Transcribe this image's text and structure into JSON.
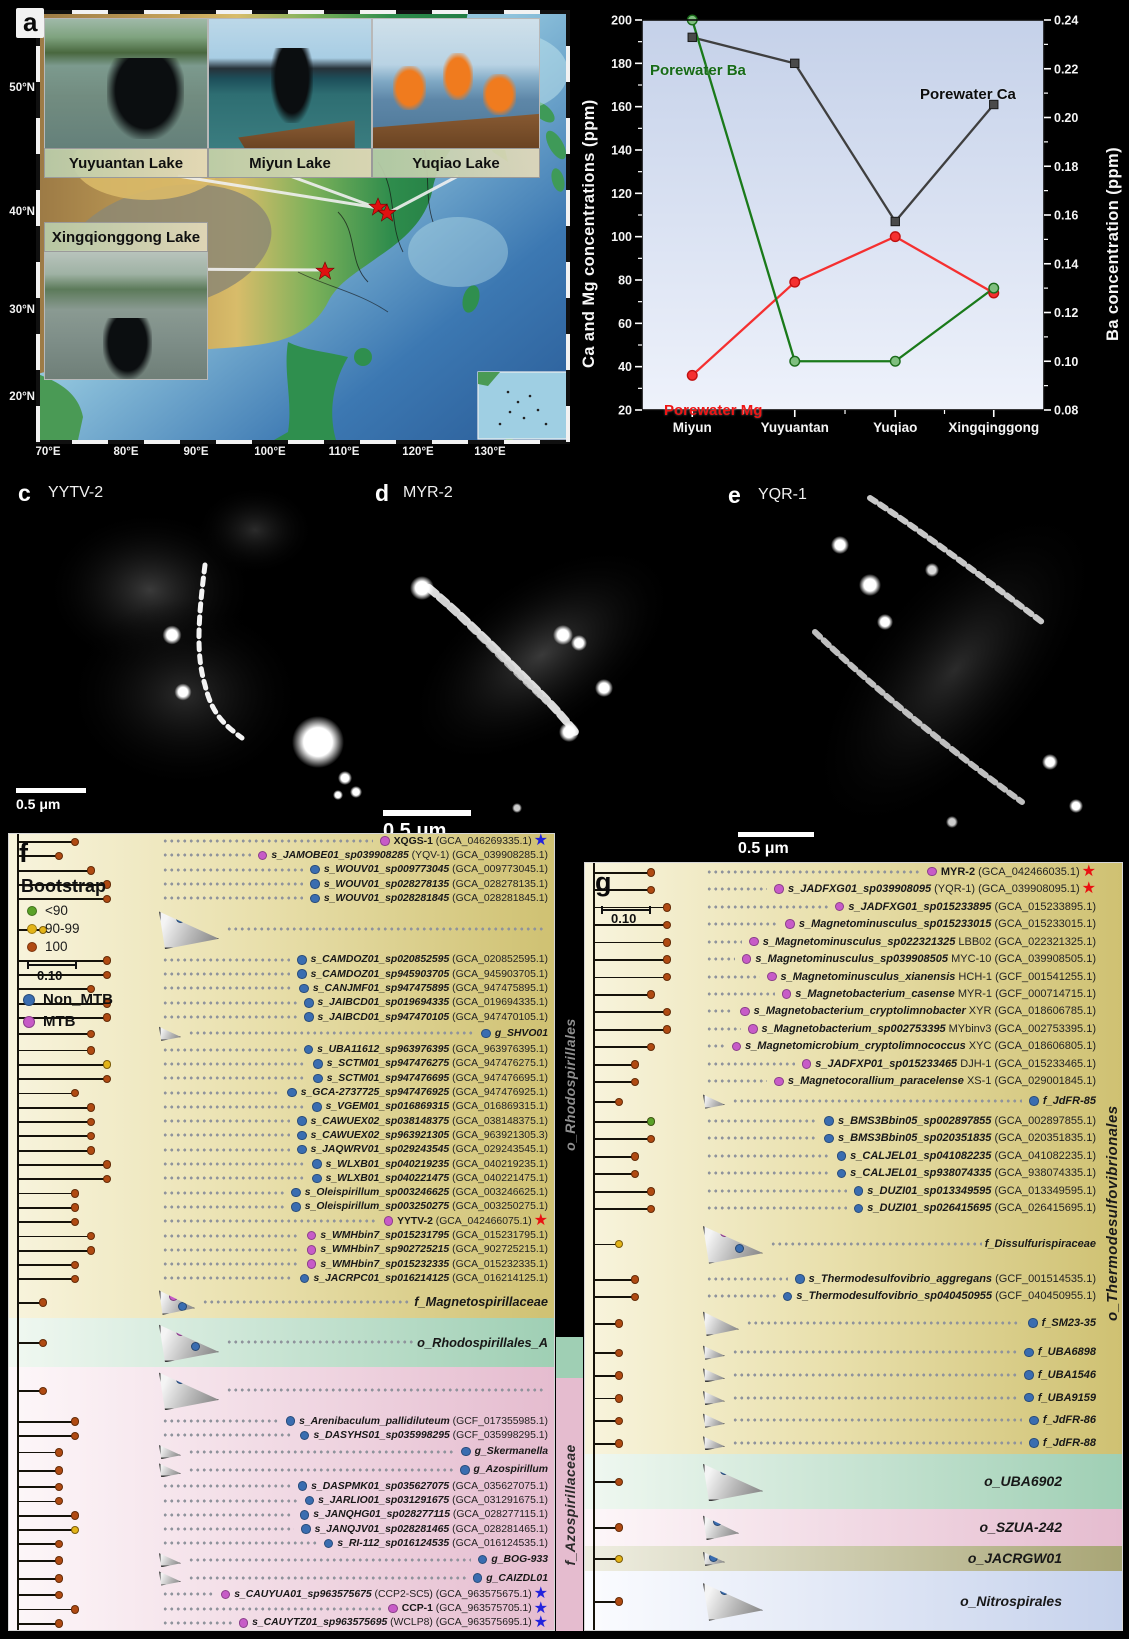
{
  "panel_a": {
    "label": "a",
    "lat_labels": [
      "50°N",
      "40°N",
      "30°N",
      "20°N"
    ],
    "lon_labels": [
      "70°E",
      "80°E",
      "90°E",
      "100°E",
      "110°E",
      "120°E",
      "130°E"
    ],
    "insets": [
      {
        "caption": "Yuyuantan Lake"
      },
      {
        "caption": "Miyun Lake"
      },
      {
        "caption": "Yuqiao Lake"
      },
      {
        "caption": "Xingqionggong Lake"
      }
    ],
    "site_marker_color": "#e01010"
  },
  "chart_data": {
    "type": "line",
    "categories": [
      "Miyun",
      "Yuyuantan",
      "Yuqiao",
      "Xingqinggong"
    ],
    "series": [
      {
        "name": "Porewater Ca",
        "axis": "left",
        "color": "#3f3f3f",
        "marker": "square",
        "marker_fill": "#4a4a4a",
        "marker_stroke": "#1a1a1a",
        "legend_color": "#0d0d0d",
        "values": [
          192,
          180,
          107,
          161
        ]
      },
      {
        "name": "Porewater Mg",
        "axis": "left",
        "color": "#f53030",
        "marker": "circle",
        "marker_fill": "#f53030",
        "marker_stroke": "#c01010",
        "legend_color": "#ee1515",
        "values": [
          36,
          79,
          100,
          74
        ]
      },
      {
        "name": "Porewater Ba",
        "axis": "right",
        "color": "#1a7a1a",
        "marker": "circle",
        "marker_fill": "#7fbf7f",
        "marker_stroke": "#1a6b1a",
        "legend_color": "#176b17",
        "values": [
          0.24,
          0.1,
          0.1,
          0.13
        ]
      }
    ],
    "ylabel_left": "Ca and Mg concentrations (ppm)",
    "ylabel_right": "Ba concentration (ppm)",
    "ylim_left": [
      20,
      200
    ],
    "ytick_step_left": 20,
    "ylim_right": [
      0.08,
      0.24
    ],
    "ytick_step_right": 0.02,
    "grid": false,
    "plot_bg_top": "#c5d1e9",
    "plot_bg_bottom": "#eef2fb",
    "legend_labels": {
      "ba": "Porewater Ba",
      "ca": "Porewater Ca",
      "mg": "Porewater Mg"
    }
  },
  "micrographs": [
    {
      "label": "c",
      "name": "YYTV-2",
      "scalebar": "0.5 μm"
    },
    {
      "label": "d",
      "name": "MYR-2",
      "scalebar": "0.5 μm"
    },
    {
      "label": "e",
      "name": "YQR-1",
      "scalebar": "0.5 μm"
    }
  ],
  "colors": {
    "mtb": "#c75bc7",
    "non_mtb": "#3a6db0",
    "boot": {
      "r": "#b04a12",
      "y": "#e3b418",
      "g": "#5aa228"
    },
    "star_blue": "#2222dd",
    "star_red": "#ea1111"
  },
  "tree_f": {
    "label": "f",
    "legend": {
      "title": "Bootstrap",
      "items": [
        {
          "label": "<90",
          "color": "#5aa228"
        },
        {
          "label": "90-99",
          "color": "#e3b418"
        },
        {
          "label": "100",
          "color": "#b04a12"
        }
      ],
      "scale": "0.10",
      "types": [
        {
          "label": "Non_MTB",
          "color": "#3a6db0"
        },
        {
          "label": "MTB",
          "color": "#c75bc7"
        }
      ]
    },
    "side_labels": {
      "order": "o_Rhodospirillales",
      "family_bottom": "f_Azospirillaceae"
    },
    "bands": [
      {
        "bg": "bgy",
        "rows": [
          {
            "t": "XQGS-1",
            "a": "GCA_046269335.1",
            "d": "m",
            "s": "b",
            "up": 1,
            "dep": 3,
            "b": "r"
          },
          {
            "t": "s_JAMOBE01_sp039908285",
            "x": "(YQV-1)",
            "a": "GCA_039908285.1",
            "d": "m",
            "dep": 2,
            "b": "r"
          },
          {
            "t": "s_WOUV01_sp009773045",
            "a": "GCA_009773045.1",
            "d": "n",
            "dep": 4,
            "b": "r"
          },
          {
            "t": "s_WOUV01_sp028278135",
            "a": "GCA_028278135.1",
            "d": "n",
            "dep": 5,
            "b": "r"
          },
          {
            "t": "s_WOUV01_sp028281845",
            "a": "GCA_028281845.1",
            "d": "n",
            "dep": 5,
            "b": "r"
          },
          {
            "c": 3,
            "cd": "n",
            "w": 2.2,
            "dep": 1,
            "b": "y"
          },
          {
            "t": "s_CAMDOZ01_sp020852595",
            "a": "GCA_020852595.1",
            "d": "n",
            "dep": 5,
            "b": "r"
          },
          {
            "t": "s_CAMDOZ01_sp945903705",
            "a": "GCA_945903705.1",
            "d": "n",
            "dep": 5,
            "b": "r"
          },
          {
            "t": "s_CANJMF01_sp947475895",
            "a": "GCA_947475895.1",
            "d": "n",
            "dep": 4,
            "b": "r"
          },
          {
            "t": "s_JAIBCD01_sp019694335",
            "a": "GCA_019694335.1",
            "d": "n",
            "dep": 5,
            "b": "r"
          },
          {
            "t": "s_JAIBCD01_sp947470105",
            "a": "GCA_947470105.1",
            "d": "n",
            "dep": 5,
            "b": "r"
          },
          {
            "t": "g_SHVO01",
            "d": "n",
            "c": 1,
            "dep": 4,
            "b": "r"
          },
          {
            "t": "s_UBA11612_sp963976395",
            "a": "GCA_963976395.1",
            "d": "n",
            "dep": 4,
            "b": "r"
          },
          {
            "t": "s_SCTM01_sp947476275",
            "a": "GCA_947476275.1",
            "d": "n",
            "dep": 5,
            "b": "y"
          },
          {
            "t": "s_SCTM01_sp947476695",
            "a": "GCA_947476695.1",
            "d": "n",
            "dep": 5,
            "b": "r"
          },
          {
            "t": "s_GCA-2737725_sp947476925",
            "a": "GCA_947476925.1",
            "d": "n",
            "dep": 3,
            "b": "r"
          },
          {
            "t": "s_VGEM01_sp016869315",
            "a": "GCA_016869315.1",
            "d": "n",
            "dep": 4,
            "b": "r"
          },
          {
            "t": "s_CAWUEX02_sp038148375",
            "a": "GCA_038148375.1",
            "d": "n",
            "dep": 4,
            "b": "r"
          },
          {
            "t": "s_CAWUEX02_sp963921305",
            "a": "GCA_963921305.3",
            "d": "n",
            "dep": 4,
            "b": "r"
          },
          {
            "t": "s_JAQWRV01_sp029243545",
            "a": "GCA_029243545.1",
            "d": "n",
            "dep": 4,
            "b": "r"
          },
          {
            "t": "s_WLXB01_sp040219235",
            "a": "GCA_040219235.1",
            "d": "n",
            "dep": 5,
            "b": "r"
          },
          {
            "t": "s_WLXB01_sp040221475",
            "a": "GCA_040221475.1",
            "d": "n",
            "dep": 5,
            "b": "r"
          },
          {
            "t": "s_Oleispirillum_sp003246625",
            "a": "GCA_003246625.1",
            "d": "n",
            "dep": 3,
            "b": "r"
          },
          {
            "t": "s_Oleispirillum_sp003250275",
            "a": "GCA_003250275.1",
            "d": "n",
            "dep": 3,
            "b": "r"
          },
          {
            "t": "YYTV-2",
            "a": "GCA_042466075.1",
            "d": "m",
            "s": "r",
            "up": 1,
            "dep": 3,
            "b": "r"
          },
          {
            "t": "s_WMHbin7_sp015231795",
            "a": "GCA_015231795.1",
            "d": "m",
            "dep": 4,
            "b": "r"
          },
          {
            "t": "s_WMHbin7_sp902725215",
            "a": "GCA_902725215.1",
            "d": "m",
            "dep": 4,
            "b": "r"
          },
          {
            "t": "s_WMHbin7_sp015232335",
            "a": "GCA_015232335.1",
            "d": "m",
            "dep": 3,
            "b": "r"
          },
          {
            "t": "s_JACRPC01_sp016214125",
            "a": "GCA_016214125.1",
            "d": "n",
            "dep": 3,
            "b": "r"
          },
          {
            "t": "f_Magnetospirillaceae",
            "c": 2,
            "cd": "mn",
            "bold": 1,
            "w": 2.0,
            "dep": 1,
            "b": "r"
          }
        ]
      },
      {
        "bg": "bgg",
        "rows": [
          {
            "t": "o_Rhodospirillales_A",
            "c": 3,
            "cd": "mn",
            "bold": 1,
            "w": 2.6,
            "dep": 1,
            "b": "r"
          }
        ]
      },
      {
        "bg": "bgp",
        "rows": [
          {
            "c": 3,
            "cd": "n",
            "w": 2.2,
            "dep": 1,
            "b": "r"
          },
          {
            "t": "s_Arenibaculum_pallidiluteum",
            "a": "GCF_017355985.1",
            "d": "n",
            "dep": 3,
            "b": "r"
          },
          {
            "t": "s_DASYHS01_sp035998295",
            "a": "GCF_035998295.1",
            "d": "n",
            "dep": 3,
            "b": "r"
          },
          {
            "t": "g_Skermanella",
            "d": "n",
            "c": 1,
            "dep": 2,
            "b": "r"
          },
          {
            "t": "g_Azospirillum",
            "d": "n",
            "c": 1,
            "dep": 2,
            "b": "r"
          },
          {
            "t": "s_DASPMK01_sp035627075",
            "a": "GCA_035627075.1",
            "d": "n",
            "dep": 2,
            "b": "r"
          },
          {
            "t": "s_JARLIO01_sp031291675",
            "a": "GCA_031291675.1",
            "d": "n",
            "dep": 2,
            "b": "r"
          },
          {
            "t": "s_JANQHG01_sp028277115",
            "a": "GCA_028277115.1",
            "d": "n",
            "dep": 3,
            "b": "r"
          },
          {
            "t": "s_JANQJV01_sp028281465",
            "a": "GCA_028281465.1",
            "d": "n",
            "dep": 3,
            "b": "y"
          },
          {
            "t": "s_RI-112_sp016124535",
            "a": "GCA_016124535.1",
            "d": "n",
            "dep": 2,
            "b": "r"
          },
          {
            "t": "g_BOG-933",
            "d": "n",
            "c": 1,
            "dep": 2,
            "b": "r"
          },
          {
            "t": "g_CAIZDL01",
            "d": "n",
            "c": 1,
            "dep": 2,
            "b": "r"
          },
          {
            "t": "s_CAUYUA01_sp963575675",
            "x": "(CCP2-SC5)",
            "a": "GCA_963575675.1",
            "d": "m",
            "s": "b",
            "dep": 2,
            "b": "r"
          },
          {
            "t": "CCP-1",
            "a": "GCA_963575705.1",
            "d": "m",
            "s": "b",
            "up": 1,
            "dep": 3,
            "b": "r"
          },
          {
            "t": "s_CAUYTZ01_sp963575695",
            "x": "(WCLP8)",
            "a": "GCA_963575695.1",
            "d": "m",
            "s": "b",
            "dep": 2,
            "b": "r"
          }
        ]
      }
    ]
  },
  "tree_g": {
    "label": "g",
    "scale": "0.10",
    "side_label": "o_Thermodesulfovibrionales",
    "bands": [
      {
        "bg": "bgy",
        "rows": [
          {
            "t": "MYR-2",
            "a": "GCA_042466035.1",
            "d": "m",
            "s": "r",
            "up": 1,
            "dep": 3,
            "b": "r"
          },
          {
            "t": "s_JADFXG01_sp039908095",
            "x": "(YQR-1)",
            "a": "GCA_039908095.1",
            "d": "m",
            "s": "r",
            "dep": 3,
            "b": "r"
          },
          {
            "t": "s_JADFXG01_sp015233895",
            "a": "GCA_015233895.1",
            "d": "m",
            "dep": 4,
            "b": "r"
          },
          {
            "t": "s_Magnetominusculus_sp015233015",
            "a": "GCA_015233015.1",
            "d": "m",
            "dep": 4,
            "b": "r"
          },
          {
            "t": "s_Magnetominusculus_sp022321325",
            "x": "LBB02",
            "a": "GCA_022321325.1",
            "d": "m",
            "dep": 4,
            "b": "r"
          },
          {
            "t": "s_Magnetominusculus_sp039908505",
            "x": "MYC-10",
            "a": "GCA_039908505.1",
            "d": "m",
            "dep": 4,
            "b": "r"
          },
          {
            "t": "s_Magnetominusculus_xianensis",
            "x": "HCH-1",
            "a": "GCF_001541255.1",
            "d": "m",
            "dep": 4,
            "b": "r"
          },
          {
            "t": "s_Magnetobacterium_casense",
            "x": "MYR-1",
            "a": "GCF_000714715.1",
            "d": "m",
            "dep": 3,
            "b": "r"
          },
          {
            "t": "s_Magnetobacterium_cryptolimnobacter",
            "x": "XYR",
            "a": "GCA_018606785.1",
            "d": "m",
            "dep": 4,
            "b": "r"
          },
          {
            "t": "s_Magnetobacterium_sp002753395",
            "x": "MYbinv3",
            "a": "GCA_002753395.1",
            "d": "m",
            "dep": 4,
            "b": "r"
          },
          {
            "t": "s_Magnetomicrobium_cryptolimnococcus",
            "x": "XYC",
            "a": "GCA_018606805.1",
            "d": "m",
            "dep": 3,
            "b": "r"
          },
          {
            "t": "s_JADFXP01_sp015233465",
            "x": "DJH-1",
            "a": "GCA_015233465.1",
            "d": "m",
            "dep": 2,
            "b": "r"
          },
          {
            "t": "s_Magnetocorallium_paracelense",
            "x": "XS-1",
            "a": "GCA_029001845.1",
            "d": "m",
            "dep": 2,
            "b": "r"
          },
          {
            "t": "f_JdFR-85",
            "d": "n",
            "c": 1,
            "dep": 1,
            "w": 1.3,
            "b": "r"
          },
          {
            "t": "s_BMS3Bbin05_sp002897855",
            "a": "GCA_002897855.1",
            "d": "n",
            "dep": 3,
            "b": "g"
          },
          {
            "t": "s_BMS3Bbin05_sp020351835",
            "a": "GCA_020351835.1",
            "d": "n",
            "dep": 3,
            "b": "r"
          },
          {
            "t": "s_CALJEL01_sp041082235",
            "a": "GCA_041082235.1",
            "d": "n",
            "dep": 2,
            "b": "r"
          },
          {
            "t": "s_CALJEL01_sp938074335",
            "a": "GCA_938074335.1",
            "d": "n",
            "dep": 2,
            "b": "r"
          },
          {
            "t": "s_DUZI01_sp013349595",
            "a": "GCA_013349595.1",
            "d": "n",
            "dep": 3,
            "b": "r"
          },
          {
            "t": "s_DUZI01_sp026415695",
            "a": "GCA_026415695.1",
            "d": "n",
            "dep": 3,
            "b": "r"
          },
          {
            "t": "f_Dissulfurispiraceae",
            "c": 3,
            "cd": "mn",
            "dep": 1,
            "w": 2.4,
            "b": "y"
          },
          {
            "t": "s_Thermodesulfovibrio_aggregans",
            "a": "GCF_001514535.1",
            "d": "n",
            "dep": 2,
            "b": "r"
          },
          {
            "t": "s_Thermodesulfovibrio_sp040450955",
            "a": "GCF_040450955.1",
            "d": "n",
            "dep": 2,
            "b": "r"
          },
          {
            "t": "f_SM23-35",
            "d": "n",
            "c": 2,
            "dep": 1,
            "w": 1.8,
            "b": "r"
          },
          {
            "t": "f_UBA6898",
            "d": "n",
            "c": 1,
            "dep": 1,
            "w": 1.4,
            "b": "r"
          },
          {
            "t": "f_UBA1546",
            "d": "n",
            "c": 1,
            "dep": 1,
            "w": 1.4,
            "b": "r"
          },
          {
            "t": "f_UBA9159",
            "d": "n",
            "c": 1,
            "dep": 1,
            "w": 1.4,
            "b": "r"
          },
          {
            "t": "f_JdFR-86",
            "d": "n",
            "c": 1,
            "dep": 1,
            "w": 1.4,
            "b": "r"
          },
          {
            "t": "f_JdFR-88",
            "d": "n",
            "c": 1,
            "dep": 1,
            "w": 1.4,
            "b": "r"
          }
        ]
      },
      {
        "bg": "bgg",
        "rows": [
          {
            "t": "o_UBA6902",
            "c": 3,
            "cd": "n",
            "bold": 1,
            "band": 1,
            "w": 2.6,
            "dep": 1,
            "b": "r"
          }
        ]
      },
      {
        "bg": "bgp",
        "rows": [
          {
            "t": "o_SZUA-242",
            "c": 2,
            "cd": "n",
            "bold": 1,
            "band": 1,
            "w": 2.0,
            "dep": 1,
            "b": "r"
          }
        ]
      },
      {
        "bg": "bgo",
        "rows": [
          {
            "t": "o_JACRGW01",
            "c": 1,
            "cd": "n",
            "bold": 1,
            "band": 1,
            "w": 1.8,
            "dep": 1,
            "b": "y"
          }
        ]
      },
      {
        "bg": "bgb",
        "rows": [
          {
            "t": "o_Nitrospirales",
            "c": 3,
            "cd": "n",
            "bold": 1,
            "band": 1,
            "w": 3.4,
            "dep": 1,
            "b": "r"
          }
        ]
      }
    ]
  }
}
